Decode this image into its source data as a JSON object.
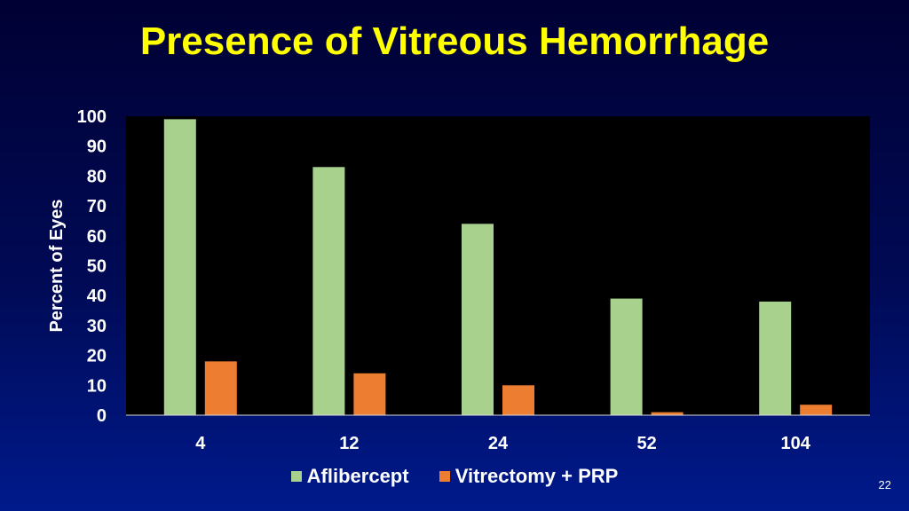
{
  "slide": {
    "title": "Presence of Vitreous Hemorrhage",
    "page_number": "22"
  },
  "colors": {
    "series1": "#a9d18e",
    "series2": "#ed7d31",
    "plot_bg": "#000000",
    "title": "#ffff00"
  },
  "chart_data": {
    "type": "bar",
    "title": "Presence of Vitreous Hemorrhage",
    "xlabel": "",
    "ylabel": "Percent of Eyes",
    "categories": [
      "4",
      "12",
      "24",
      "52",
      "104"
    ],
    "series": [
      {
        "name": "Aflibercept",
        "values": [
          99,
          83,
          64,
          39,
          38
        ]
      },
      {
        "name": "Vitrectomy + PRP",
        "values": [
          18,
          14,
          10,
          1,
          3.5
        ]
      }
    ],
    "ylim": [
      0,
      100
    ],
    "yticks": [
      0,
      10,
      20,
      30,
      40,
      50,
      60,
      70,
      80,
      90,
      100
    ],
    "grid": false,
    "legend_position": "bottom"
  }
}
